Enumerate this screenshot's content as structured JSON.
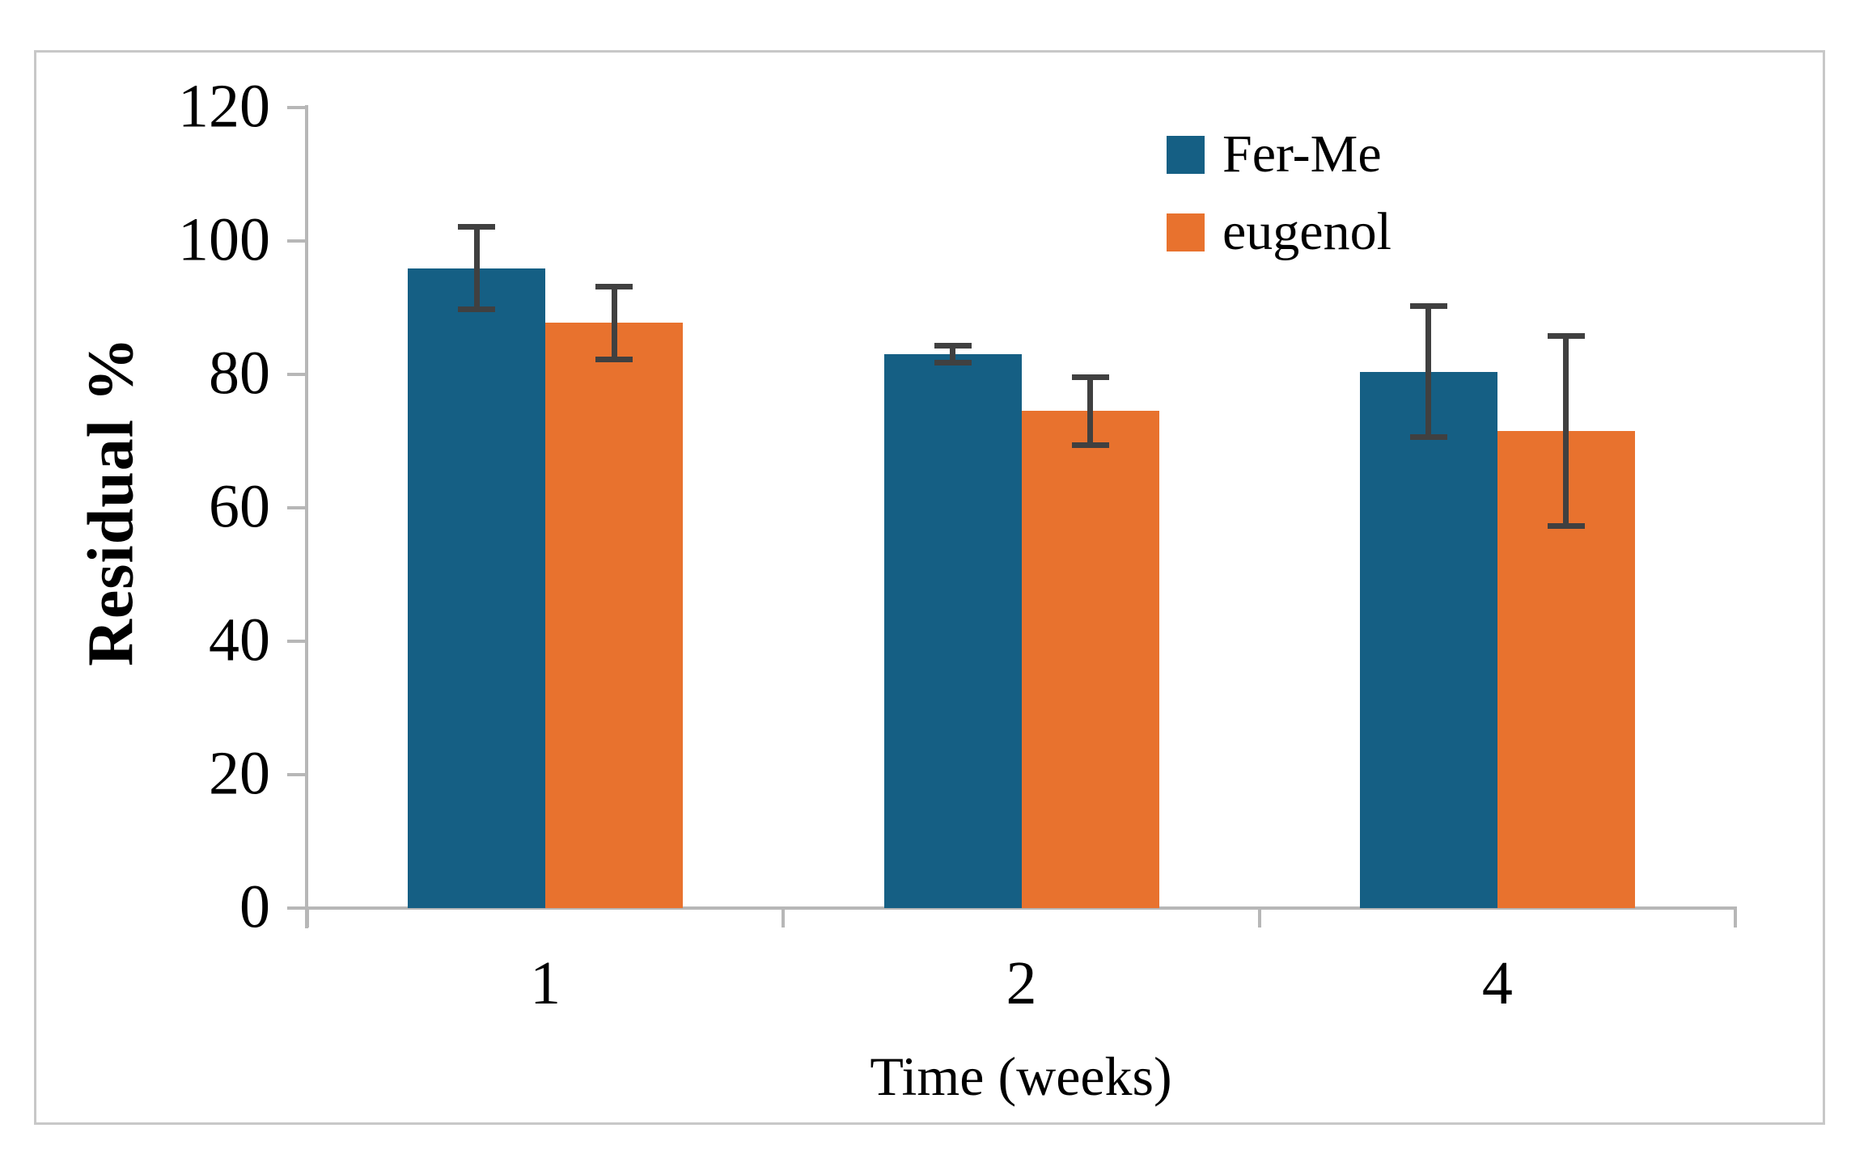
{
  "figure": {
    "background_color": "#ffffff",
    "border_color": "#c8c8c8"
  },
  "chart_data": {
    "type": "bar",
    "title": "",
    "categories": [
      "1",
      "2",
      "4"
    ],
    "xlabel": "Time (weeks)",
    "ylabel": "Residual %",
    "ylim": [
      0,
      120
    ],
    "yticks": [
      0,
      20,
      40,
      60,
      80,
      100,
      120
    ],
    "grid": "off",
    "legend_position": "top-right-inside",
    "series": [
      {
        "name": "Fer-Me",
        "color": "#155f84",
        "values": [
          95.9,
          83.0,
          80.4
        ],
        "errors": [
          6.2,
          1.3,
          9.8
        ]
      },
      {
        "name": "eugenol",
        "color": "#e8722e",
        "values": [
          87.7,
          74.5,
          71.5
        ],
        "errors": [
          5.5,
          5.1,
          14.2
        ]
      }
    ],
    "error_bar_color": "#404040",
    "axis_color": "#b7b7b7"
  }
}
